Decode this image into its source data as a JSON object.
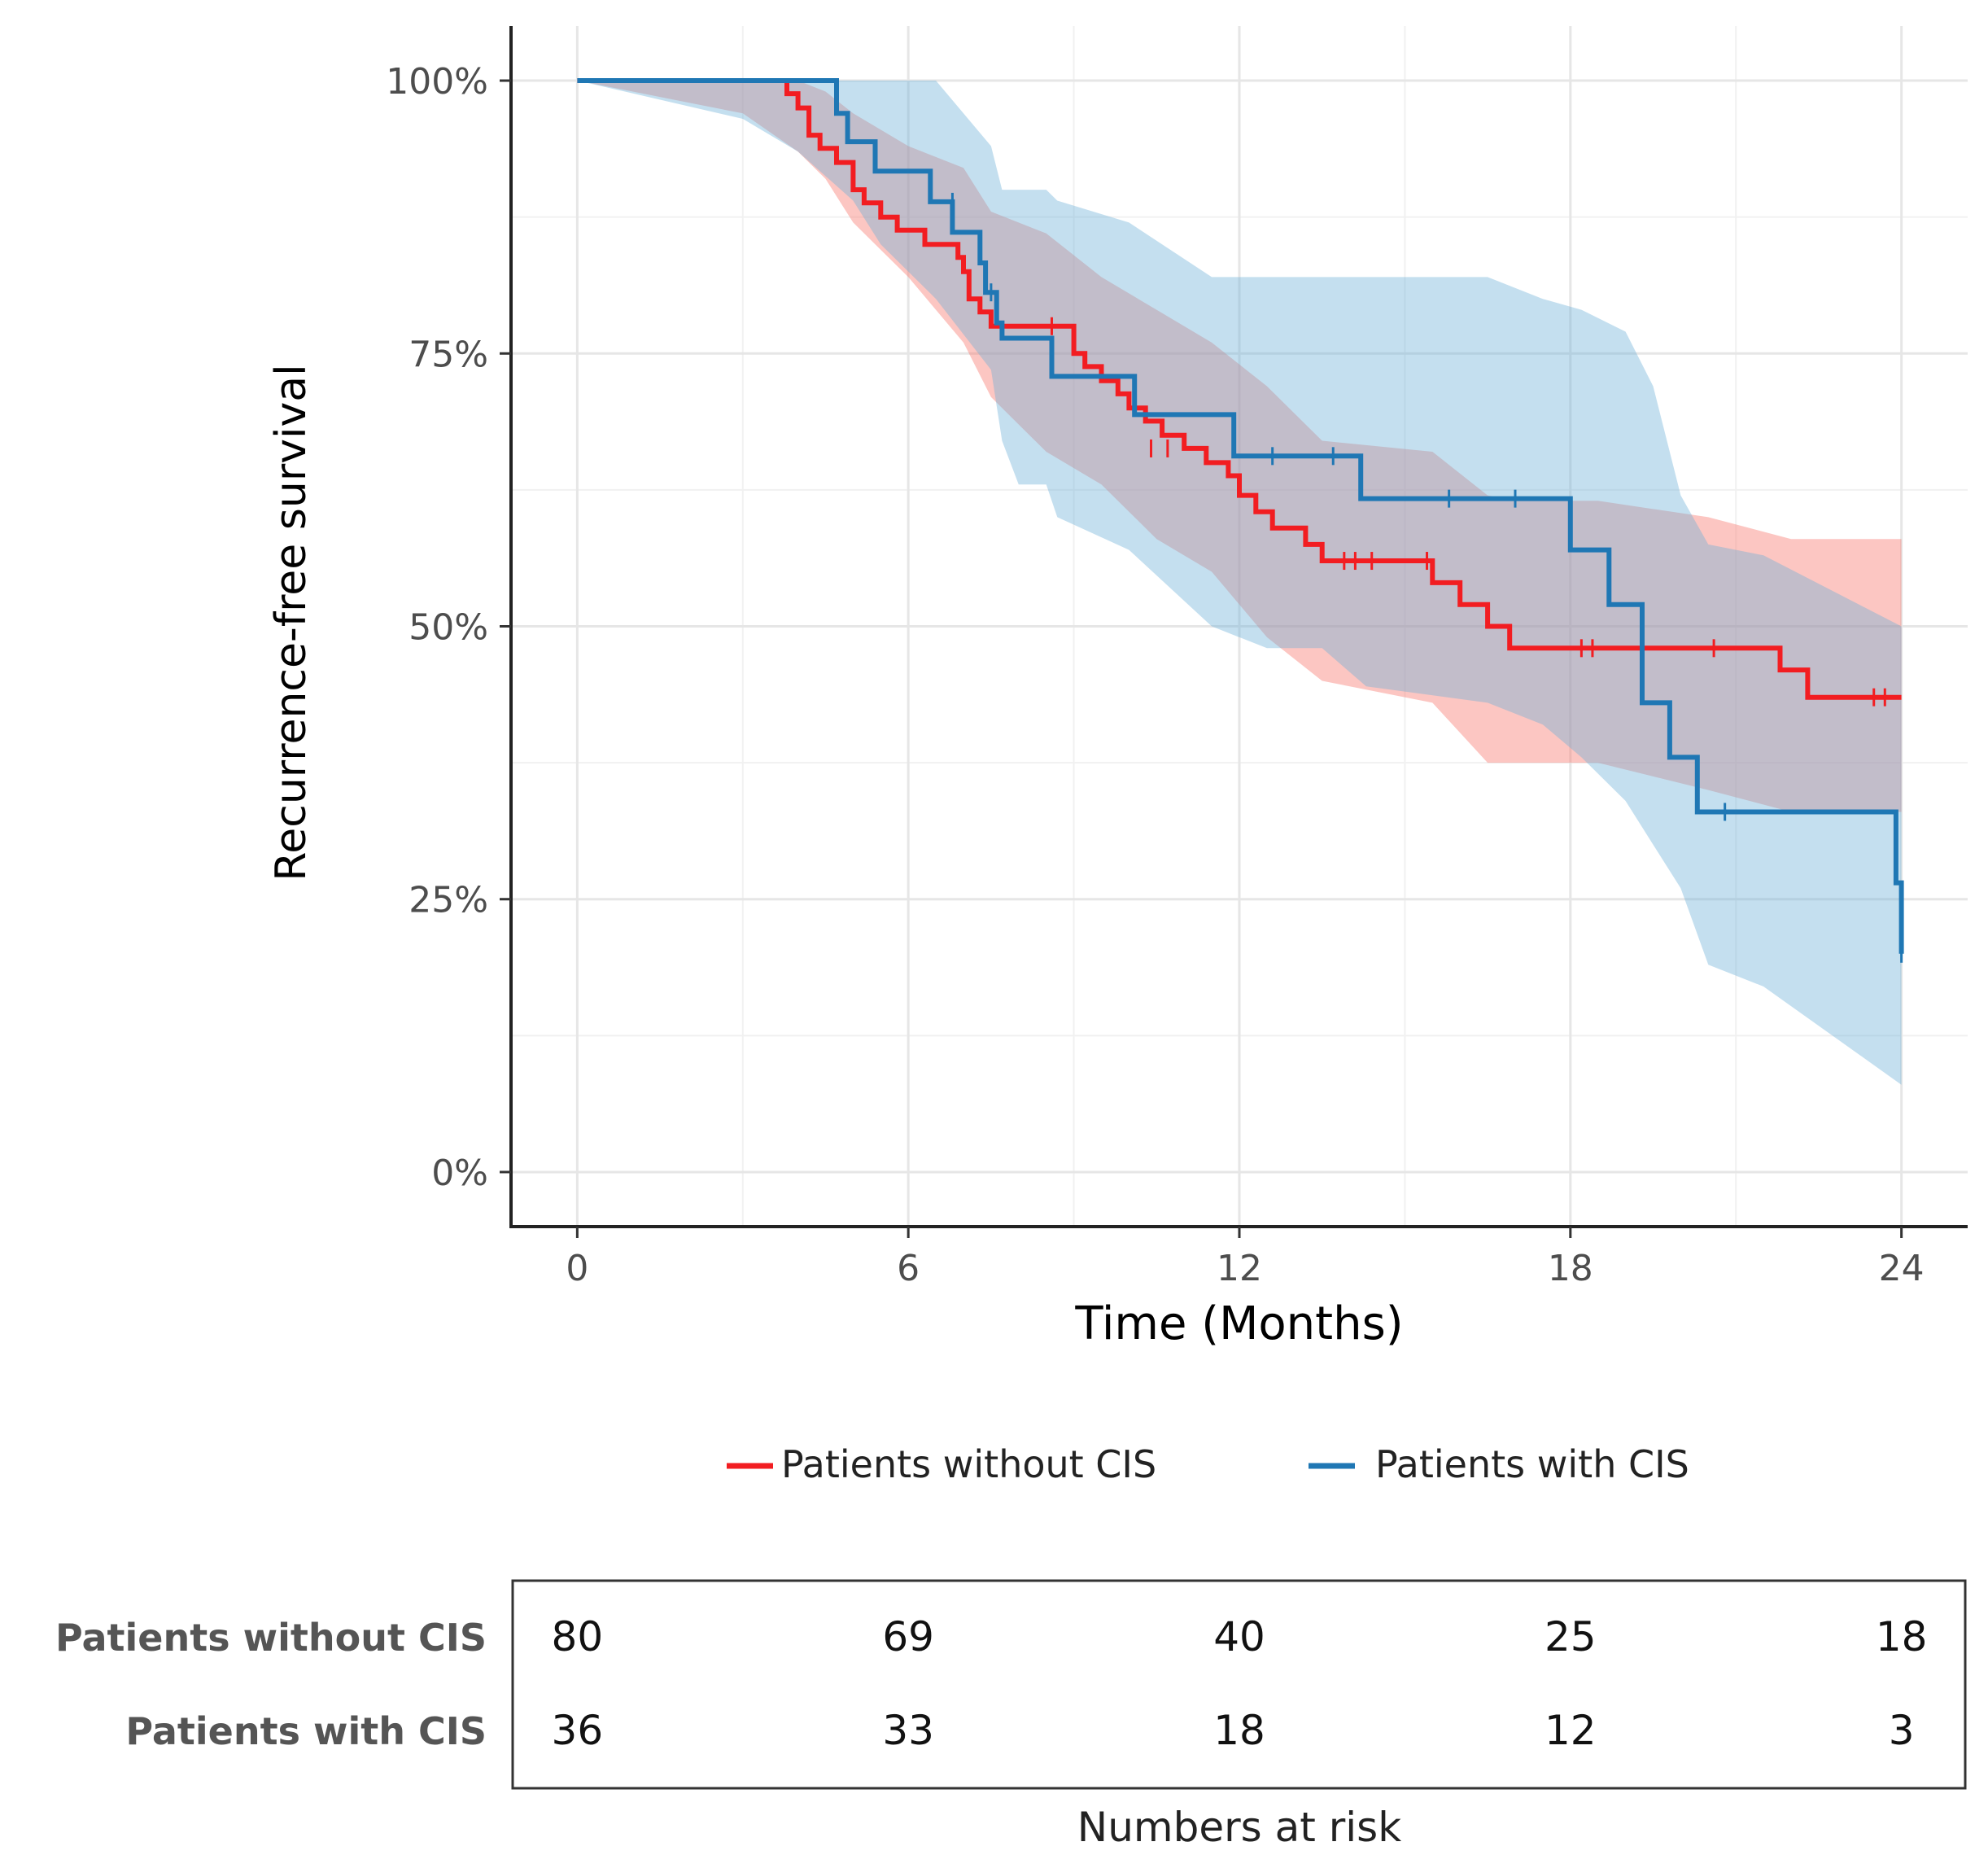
{
  "chart_data": {
    "type": "line",
    "subtype": "kaplan-meier",
    "title": "",
    "xlabel": "Time (Months)",
    "ylabel": "Recurrence-free survival",
    "xlim": [
      -1.2,
      25.2
    ],
    "ylim": [
      -0.05,
      1.05
    ],
    "x_ticks": [
      0,
      6,
      12,
      18,
      24
    ],
    "x_tick_labels": [
      "0",
      "6",
      "12",
      "18",
      "24"
    ],
    "y_ticks": [
      0,
      0.25,
      0.5,
      0.75,
      1.0
    ],
    "y_tick_labels": [
      "0%",
      "25%",
      "50%",
      "75%",
      "100%"
    ],
    "grid": true,
    "legend_position": "bottom",
    "series": [
      {
        "name": "Patients without CIS",
        "color": "#f21d21",
        "band_color": "#f8766d",
        "steps": [
          [
            0,
            1.0
          ],
          [
            3.8,
            0.988
          ],
          [
            4.0,
            0.975
          ],
          [
            4.2,
            0.95
          ],
          [
            4.4,
            0.938
          ],
          [
            4.7,
            0.925
          ],
          [
            5.0,
            0.9
          ],
          [
            5.2,
            0.888
          ],
          [
            5.5,
            0.875
          ],
          [
            5.8,
            0.863
          ],
          [
            6.3,
            0.85
          ],
          [
            6.9,
            0.838
          ],
          [
            7.0,
            0.825
          ],
          [
            7.1,
            0.8
          ],
          [
            7.3,
            0.788
          ],
          [
            7.5,
            0.775
          ],
          [
            9.0,
            0.75
          ],
          [
            9.2,
            0.738
          ],
          [
            9.5,
            0.725
          ],
          [
            9.8,
            0.713
          ],
          [
            10.0,
            0.7
          ],
          [
            10.3,
            0.688
          ],
          [
            10.6,
            0.675
          ],
          [
            11.0,
            0.663
          ],
          [
            11.4,
            0.65
          ],
          [
            11.8,
            0.638
          ],
          [
            12.0,
            0.62
          ],
          [
            12.3,
            0.605
          ],
          [
            12.6,
            0.59
          ],
          [
            13.2,
            0.575
          ],
          [
            13.5,
            0.56
          ],
          [
            15.5,
            0.54
          ],
          [
            16.0,
            0.52
          ],
          [
            16.5,
            0.5
          ],
          [
            16.9,
            0.48
          ],
          [
            21.8,
            0.46
          ],
          [
            22.3,
            0.435
          ],
          [
            24.0,
            0.435
          ]
        ],
        "band": [
          [
            0,
            1.0,
            1.0
          ],
          [
            3.0,
            0.97,
            1.0
          ],
          [
            4.0,
            0.935,
            1.0
          ],
          [
            4.5,
            0.91,
            0.99
          ],
          [
            5.0,
            0.87,
            0.97
          ],
          [
            6.0,
            0.82,
            0.94
          ],
          [
            7.0,
            0.76,
            0.92
          ],
          [
            7.5,
            0.71,
            0.88
          ],
          [
            8.5,
            0.66,
            0.86
          ],
          [
            9.5,
            0.63,
            0.82
          ],
          [
            10.5,
            0.58,
            0.79
          ],
          [
            11.5,
            0.55,
            0.76
          ],
          [
            12.5,
            0.49,
            0.72
          ],
          [
            13.5,
            0.45,
            0.67
          ],
          [
            15.5,
            0.43,
            0.66
          ],
          [
            16.5,
            0.375,
            0.62
          ],
          [
            17.0,
            0.375,
            0.615
          ],
          [
            18.5,
            0.375,
            0.615
          ],
          [
            20.5,
            0.35,
            0.6
          ],
          [
            22.0,
            0.33,
            0.58
          ],
          [
            24.0,
            0.33,
            0.58
          ]
        ],
        "censor": [
          [
            8.6,
            0.775
          ],
          [
            10.4,
            0.663
          ],
          [
            10.7,
            0.663
          ],
          [
            13.9,
            0.56
          ],
          [
            14.1,
            0.56
          ],
          [
            14.4,
            0.56
          ],
          [
            15.4,
            0.56
          ],
          [
            18.2,
            0.48
          ],
          [
            18.4,
            0.48
          ],
          [
            20.6,
            0.48
          ],
          [
            23.5,
            0.435
          ],
          [
            23.7,
            0.435
          ]
        ]
      },
      {
        "name": "Patients with CIS",
        "color": "#1f77b4",
        "band_color": "#6baed6",
        "steps": [
          [
            0,
            1.0
          ],
          [
            4.7,
            0.97
          ],
          [
            4.9,
            0.944
          ],
          [
            5.4,
            0.917
          ],
          [
            6.4,
            0.889
          ],
          [
            6.8,
            0.861
          ],
          [
            7.3,
            0.833
          ],
          [
            7.4,
            0.806
          ],
          [
            7.6,
            0.778
          ],
          [
            7.7,
            0.764
          ],
          [
            8.6,
            0.729
          ],
          [
            10.1,
            0.694
          ],
          [
            11.9,
            0.656
          ],
          [
            14.2,
            0.617
          ],
          [
            18.0,
            0.57
          ],
          [
            18.7,
            0.52
          ],
          [
            19.3,
            0.43
          ],
          [
            19.8,
            0.38
          ],
          [
            20.3,
            0.33
          ],
          [
            23.9,
            0.265
          ],
          [
            24.0,
            0.2
          ]
        ],
        "band": [
          [
            0,
            1.0,
            1.0
          ],
          [
            3.0,
            0.965,
            1.0
          ],
          [
            4.0,
            0.935,
            1.0
          ],
          [
            5.0,
            0.89,
            1.0
          ],
          [
            5.5,
            0.85,
            1.0
          ],
          [
            6.5,
            0.8,
            1.0
          ],
          [
            7.5,
            0.735,
            0.94
          ],
          [
            7.7,
            0.67,
            0.9
          ],
          [
            8.0,
            0.63,
            0.9
          ],
          [
            8.5,
            0.63,
            0.9
          ],
          [
            8.7,
            0.6,
            0.89
          ],
          [
            10.0,
            0.57,
            0.87
          ],
          [
            11.5,
            0.5,
            0.82
          ],
          [
            12.5,
            0.48,
            0.82
          ],
          [
            13.5,
            0.48,
            0.82
          ],
          [
            14.3,
            0.445,
            0.82
          ],
          [
            16.5,
            0.43,
            0.82
          ],
          [
            17.5,
            0.41,
            0.8
          ],
          [
            18.2,
            0.38,
            0.79
          ],
          [
            19.0,
            0.34,
            0.77
          ],
          [
            19.5,
            0.3,
            0.72
          ],
          [
            20.0,
            0.26,
            0.62
          ],
          [
            20.5,
            0.19,
            0.575
          ],
          [
            21.5,
            0.17,
            0.565
          ],
          [
            24.0,
            0.08,
            0.5
          ]
        ],
        "censor": [
          [
            6.8,
            0.889
          ],
          [
            7.5,
            0.806
          ],
          [
            12.6,
            0.656
          ],
          [
            13.7,
            0.656
          ],
          [
            15.8,
            0.617
          ],
          [
            17.0,
            0.617
          ],
          [
            20.8,
            0.33
          ],
          [
            24.0,
            0.2
          ]
        ]
      }
    ]
  },
  "risk_table": {
    "title": "Numbers at risk",
    "times": [
      0,
      6,
      12,
      18,
      24
    ],
    "rows": [
      {
        "label": "Patients without CIS",
        "color": "#555555",
        "values": [
          "80",
          "69",
          "40",
          "25",
          "18"
        ]
      },
      {
        "label": "Patients with CIS",
        "color": "#555555",
        "values": [
          "36",
          "33",
          "18",
          "12",
          "3"
        ]
      }
    ]
  }
}
